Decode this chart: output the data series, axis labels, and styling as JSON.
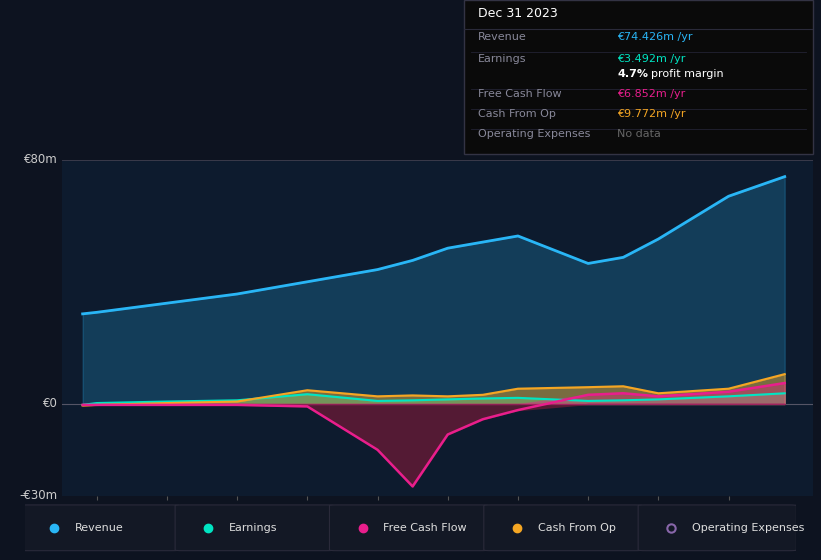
{
  "background_color": "#0d1320",
  "plot_bg_color": "#0d1b2e",
  "years": [
    2013.8,
    2014,
    2015,
    2016,
    2017,
    2018,
    2018.5,
    2019,
    2019.5,
    2020,
    2021,
    2021.5,
    2022,
    2023,
    2023.8
  ],
  "revenue": [
    29.5,
    30,
    33,
    36,
    40,
    44,
    47,
    51,
    53,
    55,
    46,
    48,
    54,
    68,
    74.426
  ],
  "earnings": [
    -0.3,
    0.3,
    0.8,
    1.2,
    3.2,
    1.0,
    1.2,
    1.5,
    1.8,
    2.0,
    1.0,
    1.2,
    1.5,
    2.5,
    3.492
  ],
  "free_cash_flow": [
    -0.3,
    -0.3,
    -0.3,
    -0.3,
    -0.8,
    -15,
    -27,
    -10,
    -5,
    -2,
    3.0,
    3.5,
    2.5,
    4.0,
    6.852
  ],
  "cash_from_op": [
    -0.5,
    -0.3,
    0.3,
    0.8,
    4.5,
    2.5,
    2.8,
    2.5,
    3.0,
    5.0,
    5.5,
    5.8,
    3.5,
    5.0,
    9.772
  ],
  "ylim_min": -30,
  "ylim_max": 80,
  "xticks": [
    2014,
    2015,
    2016,
    2017,
    2018,
    2019,
    2020,
    2021,
    2022,
    2023
  ],
  "revenue_color": "#29b6f6",
  "earnings_color": "#00e5c3",
  "fcf_color": "#e91e8c",
  "cashop_color": "#f5a623",
  "fcf_fill_neg_color": "#5c1a35",
  "info_box": {
    "title": "Dec 31 2023",
    "rows": [
      {
        "label": "Revenue",
        "value": "€74.426m /yr",
        "value_color": "#29b6f6",
        "divider": true
      },
      {
        "label": "Earnings",
        "value": "€3.492m /yr",
        "value_color": "#00e5c3",
        "divider": false
      },
      {
        "label": "",
        "value": "",
        "value_color": "white",
        "divider": true,
        "margin": true
      },
      {
        "label": "Free Cash Flow",
        "value": "€6.852m /yr",
        "value_color": "#e91e8c",
        "divider": true
      },
      {
        "label": "Cash From Op",
        "value": "€9.772m /yr",
        "value_color": "#f5a623",
        "divider": true
      },
      {
        "label": "Operating Expenses",
        "value": "No data",
        "value_color": "#666666",
        "divider": false
      }
    ]
  },
  "legend": [
    {
      "label": "Revenue",
      "color": "#29b6f6",
      "hollow": false
    },
    {
      "label": "Earnings",
      "color": "#00e5c3",
      "hollow": false
    },
    {
      "label": "Free Cash Flow",
      "color": "#e91e8c",
      "hollow": false
    },
    {
      "label": "Cash From Op",
      "color": "#f5a623",
      "hollow": false
    },
    {
      "label": "Operating Expenses",
      "color": "#8866aa",
      "hollow": true
    }
  ]
}
